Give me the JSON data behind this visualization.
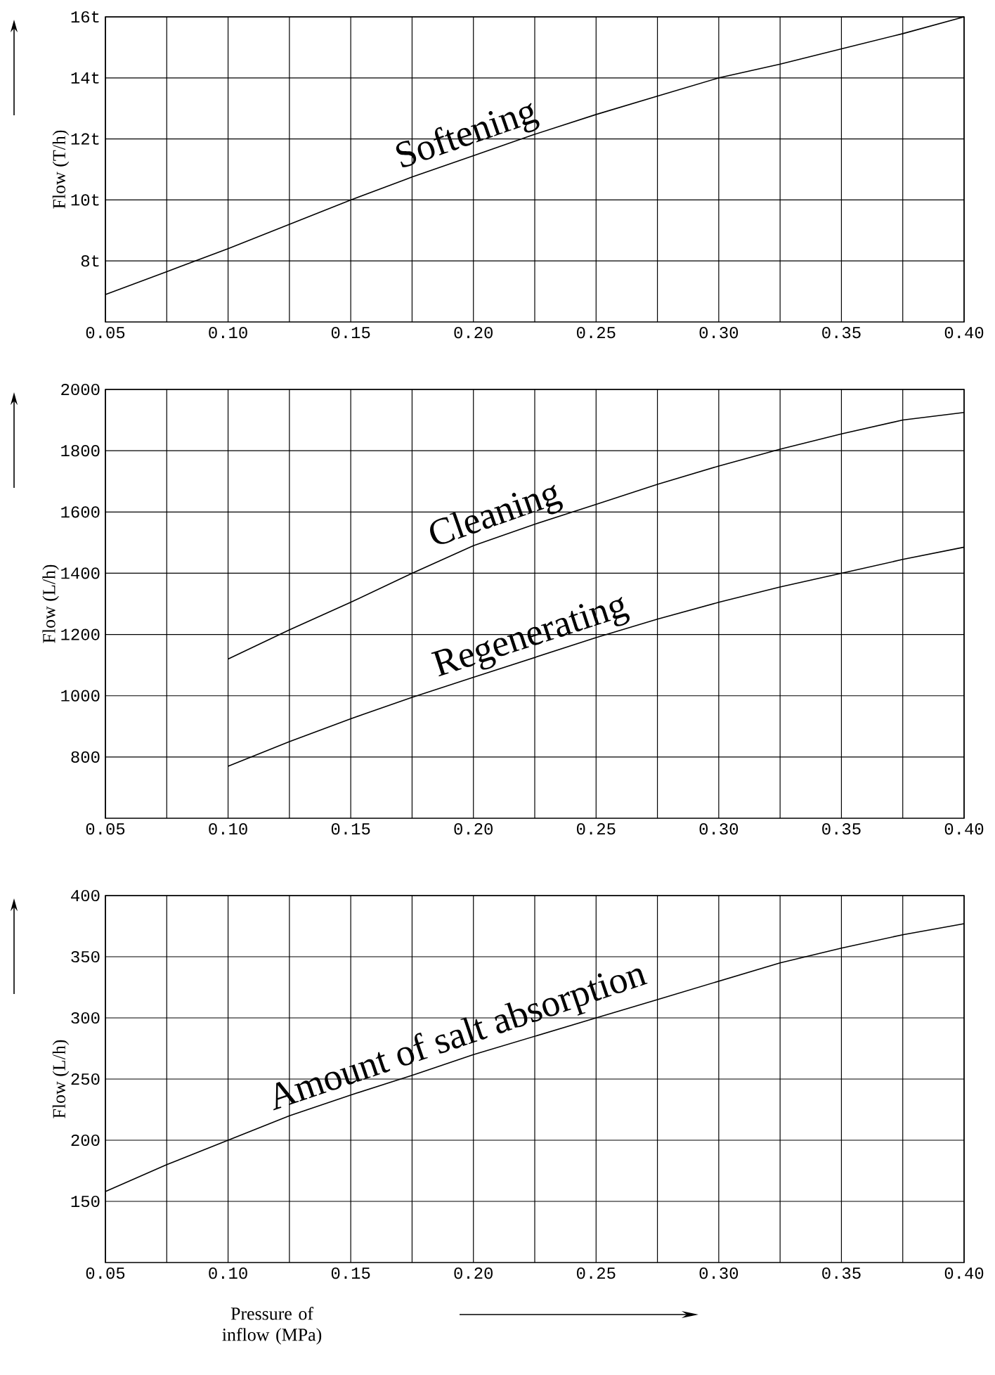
{
  "chart_data": [
    {
      "type": "line",
      "ylabel": "Flow (T/h)",
      "xlim": [
        0.05,
        0.4
      ],
      "ylim": [
        6,
        16
      ],
      "grid": true,
      "xticks": [
        0.05,
        {
          "value": 0.075,
          "label": null
        },
        {
          "value": 0.1,
          "label": "0.10"
        },
        {
          "value": 0.125,
          "label": null
        },
        0.15,
        {
          "value": 0.175,
          "label": null
        },
        {
          "value": 0.2,
          "label": "0.20"
        },
        {
          "value": 0.225,
          "label": null
        },
        0.25,
        {
          "value": 0.275,
          "label": null
        },
        {
          "value": 0.3,
          "label": "0.30"
        },
        {
          "value": 0.325,
          "label": null
        },
        0.35,
        {
          "value": 0.375,
          "label": null
        },
        {
          "value": 0.4,
          "label": "0.40"
        }
      ],
      "yticks": [
        {
          "value": 8,
          "label": "8t"
        },
        {
          "value": 10,
          "label": "10t"
        },
        {
          "value": 12,
          "label": "12t"
        },
        {
          "value": 14,
          "label": "14t"
        },
        {
          "value": 16,
          "label": "16t"
        }
      ],
      "series": [
        {
          "name": "Softening",
          "color": "#000000",
          "x": [
            0.05,
            0.075,
            0.1,
            0.125,
            0.15,
            0.175,
            0.2,
            0.225,
            0.25,
            0.275,
            0.3,
            0.325,
            0.35,
            0.375,
            0.4
          ],
          "values": [
            6.9,
            7.65,
            8.4,
            9.2,
            10.0,
            10.75,
            11.45,
            12.15,
            12.8,
            13.4,
            14.0,
            14.45,
            14.95,
            15.45,
            16.0
          ]
        }
      ]
    },
    {
      "type": "line",
      "ylabel": "Flow (L/h)",
      "xlim": [
        0.05,
        0.4
      ],
      "ylim": [
        600,
        2000
      ],
      "grid": true,
      "xticks": [
        0.05,
        {
          "value": 0.075,
          "label": null
        },
        {
          "value": 0.1,
          "label": "0.10"
        },
        {
          "value": 0.125,
          "label": null
        },
        0.15,
        {
          "value": 0.175,
          "label": null
        },
        {
          "value": 0.2,
          "label": "0.20"
        },
        {
          "value": 0.225,
          "label": null
        },
        0.25,
        {
          "value": 0.275,
          "label": null
        },
        {
          "value": 0.3,
          "label": "0.30"
        },
        {
          "value": 0.325,
          "label": null
        },
        0.35,
        {
          "value": 0.375,
          "label": null
        },
        {
          "value": 0.4,
          "label": "0.40"
        }
      ],
      "yticks": [
        800,
        1000,
        1200,
        1400,
        1600,
        1800,
        2000
      ],
      "series": [
        {
          "name": "Cleaning",
          "color": "#000000",
          "x": [
            0.1,
            0.125,
            0.15,
            0.175,
            0.2,
            0.225,
            0.25,
            0.275,
            0.3,
            0.325,
            0.35,
            0.375,
            0.4
          ],
          "values": [
            1120,
            1215,
            1305,
            1400,
            1490,
            1560,
            1625,
            1690,
            1750,
            1805,
            1855,
            1900,
            1925
          ]
        },
        {
          "name": "Regenerating",
          "color": "#000000",
          "x": [
            0.1,
            0.125,
            0.15,
            0.175,
            0.2,
            0.225,
            0.25,
            0.275,
            0.3,
            0.325,
            0.35,
            0.375,
            0.4
          ],
          "values": [
            770,
            850,
            925,
            995,
            1060,
            1125,
            1190,
            1250,
            1305,
            1355,
            1400,
            1445,
            1485
          ]
        }
      ]
    },
    {
      "type": "line",
      "ylabel": "Flow (L/h)",
      "xlabel": "Pressure of inflow (MPa)",
      "xlim": [
        0.05,
        0.4
      ],
      "ylim": [
        100,
        400
      ],
      "grid": true,
      "xticks": [
        0.05,
        {
          "value": 0.075,
          "label": null
        },
        {
          "value": 0.1,
          "label": "0.10"
        },
        {
          "value": 0.125,
          "label": null
        },
        0.15,
        {
          "value": 0.175,
          "label": null
        },
        {
          "value": 0.2,
          "label": "0.20"
        },
        {
          "value": 0.225,
          "label": null
        },
        0.25,
        {
          "value": 0.275,
          "label": null
        },
        {
          "value": 0.3,
          "label": "0.30"
        },
        {
          "value": 0.325,
          "label": null
        },
        0.35,
        {
          "value": 0.375,
          "label": null
        },
        {
          "value": 0.4,
          "label": "0.40"
        }
      ],
      "yticks": [
        150,
        200,
        250,
        300,
        350,
        400
      ],
      "series": [
        {
          "name": "Amount of salt absorption",
          "color": "#000000",
          "x": [
            0.05,
            0.075,
            0.1,
            0.125,
            0.15,
            0.175,
            0.2,
            0.225,
            0.25,
            0.275,
            0.3,
            0.325,
            0.35,
            0.375,
            0.4
          ],
          "values": [
            158,
            180,
            200,
            220,
            237,
            253,
            270,
            285,
            300,
            315,
            330,
            345,
            357,
            368,
            377
          ]
        }
      ]
    }
  ]
}
